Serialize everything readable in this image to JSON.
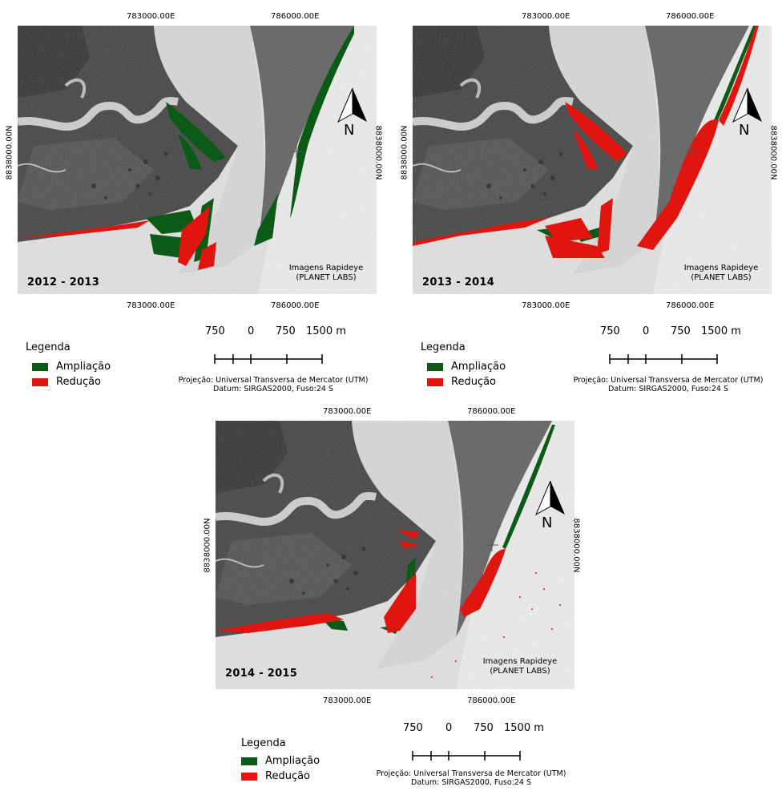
{
  "panels": [
    {
      "period": "2012 - 2013",
      "top_easting_left": "783000.00E",
      "top_easting_right": "786000.00E",
      "bottom_easting_left": "783000.00E",
      "bottom_easting_right": "786000.00E",
      "northing_left": "8838000.00N",
      "northing_right": "8838000.00N",
      "credit_line1": "Imagens Rapideye",
      "credit_line2": "(PLANET LABS)",
      "north_label": "N"
    },
    {
      "period": "2013 - 2014",
      "top_easting_left": "783000.00E",
      "top_easting_right": "786000.00E",
      "bottom_easting_left": "783000.00E",
      "bottom_easting_right": "786000.00E",
      "northing_left": "8838000.00N",
      "northing_right": "8838000.00N",
      "credit_line1": "Imagens Rapideye",
      "credit_line2": "(PLANET LABS)",
      "north_label": "N"
    },
    {
      "period": "2014 - 2015",
      "top_easting_left": "783000.00E",
      "top_easting_right": "786000.00E",
      "bottom_easting_left": "783000.00E",
      "bottom_easting_right": "786000.00E",
      "northing_left": "8838000.00N",
      "northing_right": "8838000.00N",
      "credit_line1": "Imagens Rapideye",
      "credit_line2": "(PLANET LABS)",
      "north_label": "N"
    }
  ],
  "legend": {
    "title": "Legenda",
    "items": [
      {
        "label": "Ampliação",
        "color": "#0b5a16"
      },
      {
        "label": "Redução",
        "color": "#e0150f"
      }
    ]
  },
  "scale": {
    "labels": [
      "750",
      "0",
      "750",
      "1500 m"
    ]
  },
  "projection": {
    "line1": "Projeção: Universal Transversa de Mercator (UTM)",
    "line2": "Datum: SIRGAS2000, Fuso:24 S"
  }
}
